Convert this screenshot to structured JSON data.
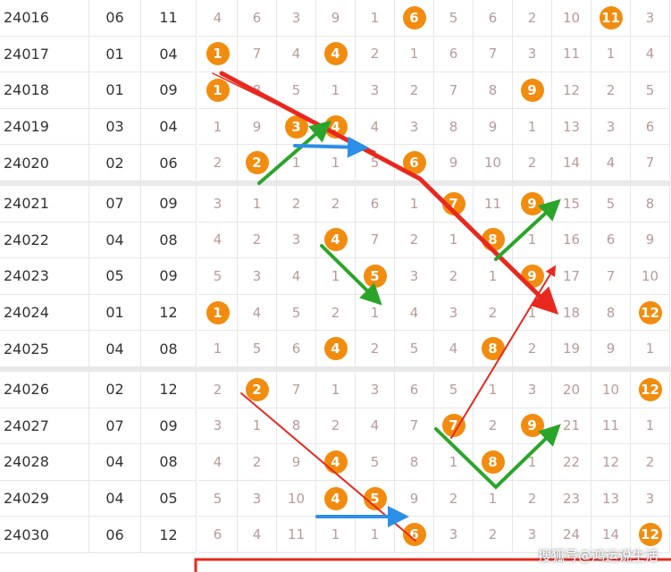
{
  "table": {
    "rows": [
      {
        "issue": "24016",
        "nums": [
          "06",
          "11"
        ],
        "cells": [
          4,
          6,
          3,
          9,
          1,
          6,
          5,
          6,
          2,
          10,
          11,
          3
        ]
      },
      {
        "issue": "24017",
        "nums": [
          "01",
          "04"
        ],
        "cells": [
          1,
          7,
          4,
          4,
          2,
          1,
          6,
          7,
          3,
          11,
          1,
          4
        ]
      },
      {
        "issue": "24018",
        "nums": [
          "01",
          "09"
        ],
        "cells": [
          1,
          8,
          5,
          1,
          3,
          2,
          7,
          8,
          9,
          12,
          2,
          5
        ]
      },
      {
        "issue": "24019",
        "nums": [
          "03",
          "04"
        ],
        "cells": [
          1,
          9,
          3,
          4,
          4,
          3,
          8,
          9,
          1,
          13,
          3,
          6
        ]
      },
      {
        "issue": "24020",
        "nums": [
          "02",
          "06"
        ],
        "cells": [
          2,
          2,
          1,
          1,
          5,
          6,
          9,
          10,
          2,
          14,
          4,
          7
        ]
      },
      {
        "issue": "24021",
        "nums": [
          "07",
          "09"
        ],
        "cells": [
          3,
          1,
          2,
          2,
          6,
          1,
          7,
          11,
          9,
          15,
          5,
          8
        ]
      },
      {
        "issue": "24022",
        "nums": [
          "04",
          "08"
        ],
        "cells": [
          4,
          2,
          3,
          4,
          7,
          2,
          1,
          8,
          1,
          16,
          6,
          9
        ]
      },
      {
        "issue": "24023",
        "nums": [
          "05",
          "09"
        ],
        "cells": [
          5,
          3,
          4,
          1,
          5,
          3,
          2,
          1,
          9,
          17,
          7,
          10
        ]
      },
      {
        "issue": "24024",
        "nums": [
          "01",
          "12"
        ],
        "cells": [
          1,
          4,
          5,
          2,
          1,
          4,
          3,
          2,
          1,
          18,
          8,
          12
        ]
      },
      {
        "issue": "24025",
        "nums": [
          "04",
          "08"
        ],
        "cells": [
          1,
          5,
          6,
          4,
          2,
          5,
          4,
          8,
          2,
          19,
          9,
          1
        ]
      },
      {
        "issue": "24026",
        "nums": [
          "02",
          "12"
        ],
        "cells": [
          2,
          2,
          7,
          1,
          3,
          6,
          5,
          1,
          3,
          20,
          10,
          12
        ]
      },
      {
        "issue": "24027",
        "nums": [
          "07",
          "09"
        ],
        "cells": [
          3,
          1,
          8,
          2,
          4,
          7,
          7,
          2,
          9,
          21,
          11,
          1
        ]
      },
      {
        "issue": "24028",
        "nums": [
          "04",
          "08"
        ],
        "cells": [
          4,
          2,
          9,
          4,
          5,
          8,
          1,
          8,
          1,
          22,
          12,
          2
        ]
      },
      {
        "issue": "24029",
        "nums": [
          "04",
          "05"
        ],
        "cells": [
          5,
          3,
          10,
          4,
          5,
          9,
          2,
          1,
          2,
          23,
          13,
          3
        ]
      },
      {
        "issue": "24030",
        "nums": [
          "06",
          "12"
        ],
        "cells": [
          6,
          4,
          11,
          1,
          1,
          6,
          3,
          2,
          3,
          24,
          14,
          12
        ]
      }
    ]
  },
  "watermark": "搜狐号@鸿运说生活"
}
